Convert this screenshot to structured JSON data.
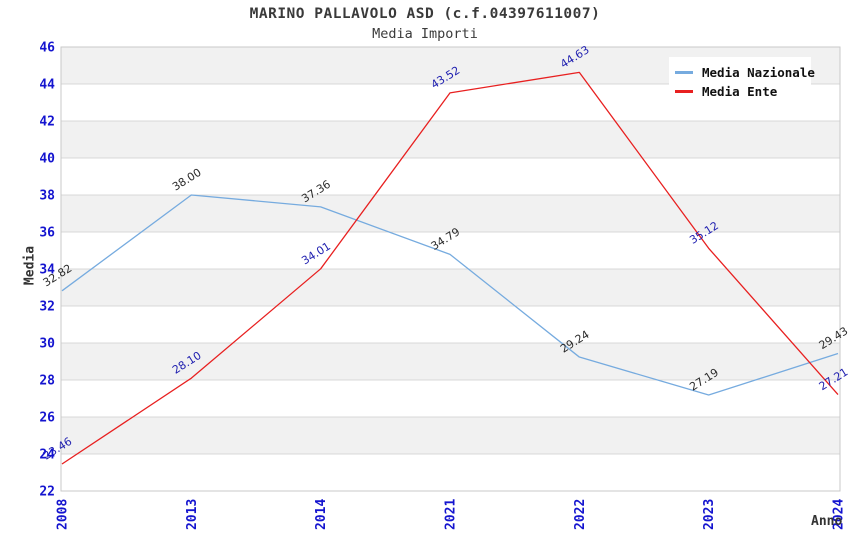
{
  "title": "MARINO PALLAVOLO ASD (c.f.04397611007)",
  "subtitle": "Media Importi",
  "chart_data": {
    "type": "line",
    "x": [
      "2008",
      "2013",
      "2014",
      "2021",
      "2022",
      "2023",
      "2024"
    ],
    "xlabel": "Anno",
    "ylabel": "Media",
    "ylim": [
      22,
      46
    ],
    "ytick_step": 2,
    "yticks": [
      22,
      24,
      26,
      28,
      30,
      32,
      34,
      36,
      38,
      40,
      42,
      44,
      46
    ],
    "grid": "horizontal-gridlines-with-alternating-bands",
    "legend_position": "top-right",
    "series": [
      {
        "name": "Media Nazionale",
        "color": "#76abdf",
        "label_color": "#2a2a2a",
        "values": [
          32.82,
          38.0,
          37.36,
          34.79,
          29.24,
          27.19,
          29.43
        ]
      },
      {
        "name": "Media Ente",
        "color": "#e82020",
        "label_color": "#2020b0",
        "values": [
          23.46,
          28.1,
          34.01,
          43.52,
          44.63,
          35.12,
          27.21
        ]
      }
    ],
    "colors": {
      "tick_label": "#1414cf",
      "axis_title": "#333333",
      "band_fill": "#f1f1f1",
      "gridline": "#d8d8d8",
      "plot_border": "#c9c9c9",
      "legend_background": "#ffffff"
    }
  }
}
